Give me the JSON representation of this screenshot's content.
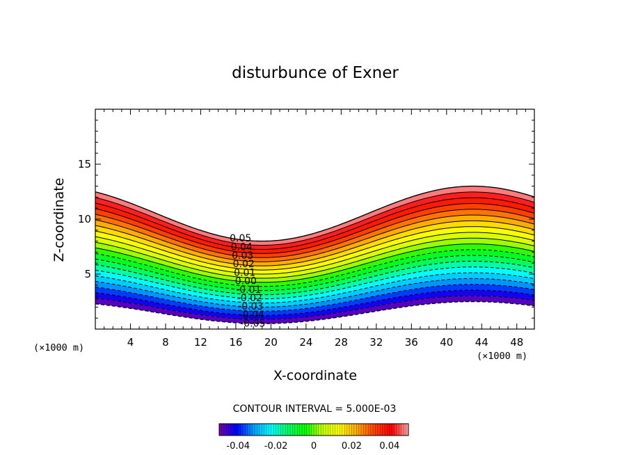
{
  "chart_data": {
    "type": "contour",
    "title": "disturbunce of Exner",
    "xlabel": "X-coordinate",
    "ylabel": "Z-coordinate",
    "x_unit_label": "(×1000 m)",
    "xlim": [
      0,
      50
    ],
    "ylim": [
      0,
      20
    ],
    "x_ticks": [
      4,
      8,
      12,
      16,
      20,
      24,
      28,
      32,
      36,
      40,
      44,
      48
    ],
    "y_ticks": [
      5,
      10,
      15
    ],
    "contour_interval_label": "CONTOUR INTERVAL = 5.000E-03",
    "contour_interval": 0.005,
    "levels": [
      -0.05,
      -0.045,
      -0.04,
      -0.035,
      -0.03,
      -0.025,
      -0.02,
      -0.015,
      -0.01,
      -0.005,
      0.0,
      0.005,
      0.01,
      0.015,
      0.02,
      0.025,
      0.03,
      0.035,
      0.04,
      0.045,
      0.05
    ],
    "negative_lines": "dashed",
    "contour_labels": [
      "0.05",
      "0.04",
      "0.03",
      "0.02",
      "0.01",
      "0.00",
      "-0.01",
      "-0.02",
      "-0.03",
      "-0.04",
      "-0.05"
    ],
    "field": {
      "bottom_z_min": 0.5,
      "bottom_z_max": 2.5,
      "top_z_min": 8.0,
      "top_z_max": 13.0,
      "top_z_at_x0": 11.5,
      "crest_x": 43,
      "trough_x": 19
    },
    "colorbar": {
      "ticks": [
        -0.04,
        -0.02,
        0,
        0.02,
        0.04
      ],
      "tick_labels": [
        "-0.04",
        "-0.02",
        "0",
        "0.02",
        "0.04"
      ],
      "range": [
        -0.05,
        0.05
      ]
    },
    "colormap": [
      "#7a00a8",
      "#0000ff",
      "#00a0ff",
      "#00ffff",
      "#00ff66",
      "#00ff00",
      "#c8ff00",
      "#ffff00",
      "#ffaa00",
      "#ff4400",
      "#ff0000",
      "#ffaaaa"
    ]
  }
}
